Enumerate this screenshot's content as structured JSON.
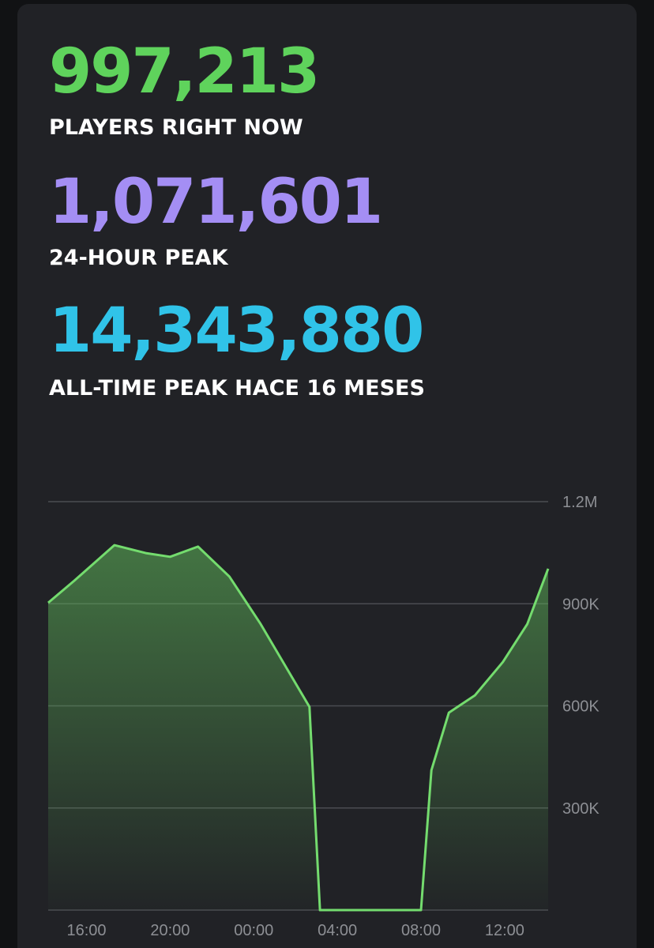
{
  "stats": [
    {
      "value": "997,213",
      "label": "PLAYERS RIGHT NOW",
      "color": "#5fd35c"
    },
    {
      "value": "1,071,601",
      "label": "24-HOUR PEAK",
      "color": "#a48ef4"
    },
    {
      "value": "14,343,880",
      "label": "ALL-TIME PEAK HACE 16 MESES",
      "color": "#30c3e8"
    }
  ],
  "chart_data": {
    "type": "area",
    "color": "#74dc6e",
    "x": [
      "14:10",
      "15:25",
      "17:20",
      "18:50",
      "20:00",
      "21:20",
      "22:50",
      "00:20",
      "02:40",
      "03:10",
      "08:00",
      "08:30",
      "09:20",
      "10:35",
      "11:55",
      "13:05",
      "14:05"
    ],
    "values": [
      903000,
      968000,
      1072000,
      1049000,
      1038000,
      1068000,
      980000,
      840000,
      597000,
      0,
      0,
      411000,
      580000,
      631000,
      729000,
      840000,
      1003000
    ],
    "xlim": [
      "14:10",
      "14:05"
    ],
    "xticks": [
      "16:00",
      "20:00",
      "00:00",
      "04:00",
      "08:00",
      "12:00"
    ],
    "ylim": [
      0,
      1200000
    ],
    "yticks": [
      {
        "value": 300000,
        "label": "300K"
      },
      {
        "value": 600000,
        "label": "600K"
      },
      {
        "value": 900000,
        "label": "900K"
      },
      {
        "value": 1200000,
        "label": "1.2M"
      }
    ],
    "grid": true
  }
}
